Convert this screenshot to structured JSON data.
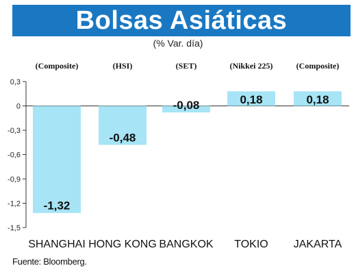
{
  "chart_data": {
    "type": "bar",
    "title": "Bolsas Asiáticas",
    "subtitle": "(% Var. día)",
    "categories": [
      "SHANGHAI",
      "HONG KONG",
      "BANGKOK",
      "TOKIO",
      "JAKARTA"
    ],
    "indices": [
      "(Composite)",
      "(HSI)",
      "(SET)",
      "(Nikkei 225)",
      "(Composite)"
    ],
    "values": [
      -1.32,
      -0.48,
      -0.08,
      0.18,
      0.18
    ],
    "value_labels": [
      "-1,32",
      "-0,48",
      "-0,08",
      "0,18",
      "0,18"
    ],
    "ylim": [
      -1.5,
      0.3
    ],
    "yticks": [
      0.3,
      0,
      -0.3,
      -0.6,
      -0.9,
      -1.2,
      -1.5
    ],
    "ytick_labels": [
      "0,3",
      "0",
      "-0,3",
      "-0,6",
      "-0,9",
      "-1,2",
      "-1,5"
    ],
    "grid": false,
    "bar_color": "#a6e4f6",
    "title_bar_color": "#1a78c2",
    "source": "Fuente: Bloomberg."
  }
}
